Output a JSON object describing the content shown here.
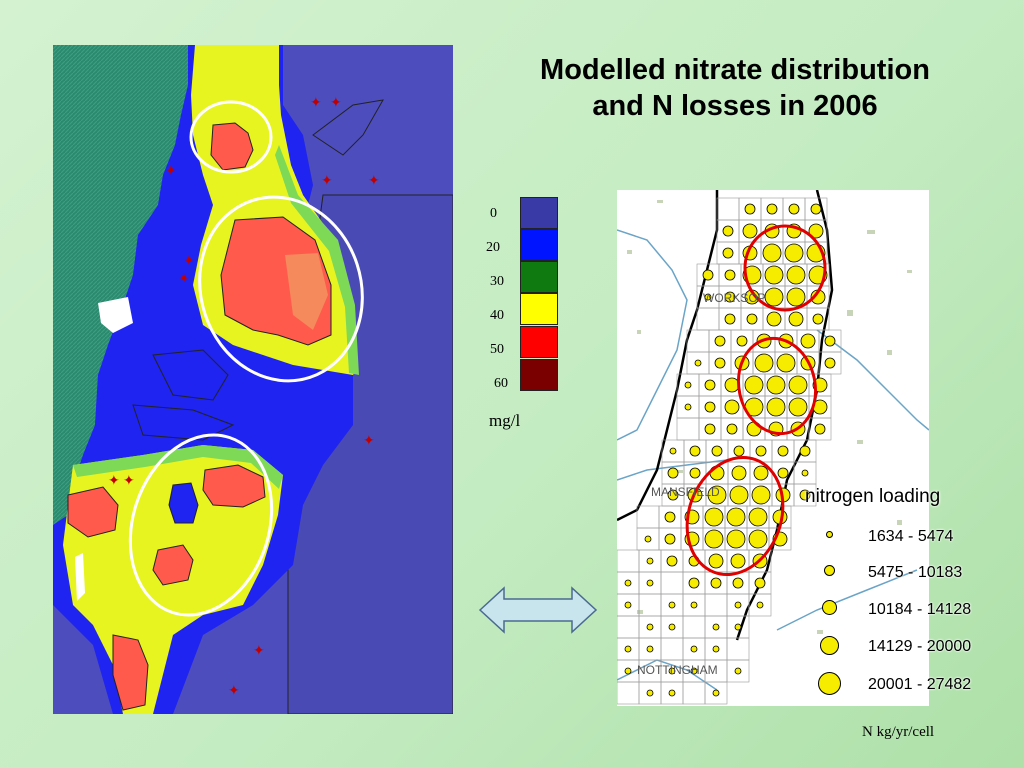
{
  "title": {
    "line1": "Modelled nitrate distribution",
    "line2": "and N losses in 2006"
  },
  "concentration_scale": {
    "labels": [
      "0",
      "20",
      "30",
      "40",
      "50",
      "60"
    ],
    "colors": [
      "#3a3aa6",
      "#0014ff",
      "#0e7a10",
      "#ffff00",
      "#ff0000",
      "#7a0000"
    ],
    "unit": "mg/l"
  },
  "towns": [
    "WORKSOP",
    "MANSFIELD",
    "NOTTINGHAM"
  ],
  "nitrogen_legend": {
    "title": "nitrogen loading",
    "classes": [
      "1634 - 5474",
      "5475 - 10183",
      "10184 - 14128",
      "14129 - 20000",
      "20001 - 27482"
    ],
    "unit": "N kg/yr/cell"
  },
  "colors": {
    "map_background": "#4d4dbd",
    "aquifer_outcrop": "#2c8a6e",
    "highlight_oval": "#ffffff",
    "hotspot_oval": "#e00000",
    "arrow_fill": "#c8e4ec"
  }
}
